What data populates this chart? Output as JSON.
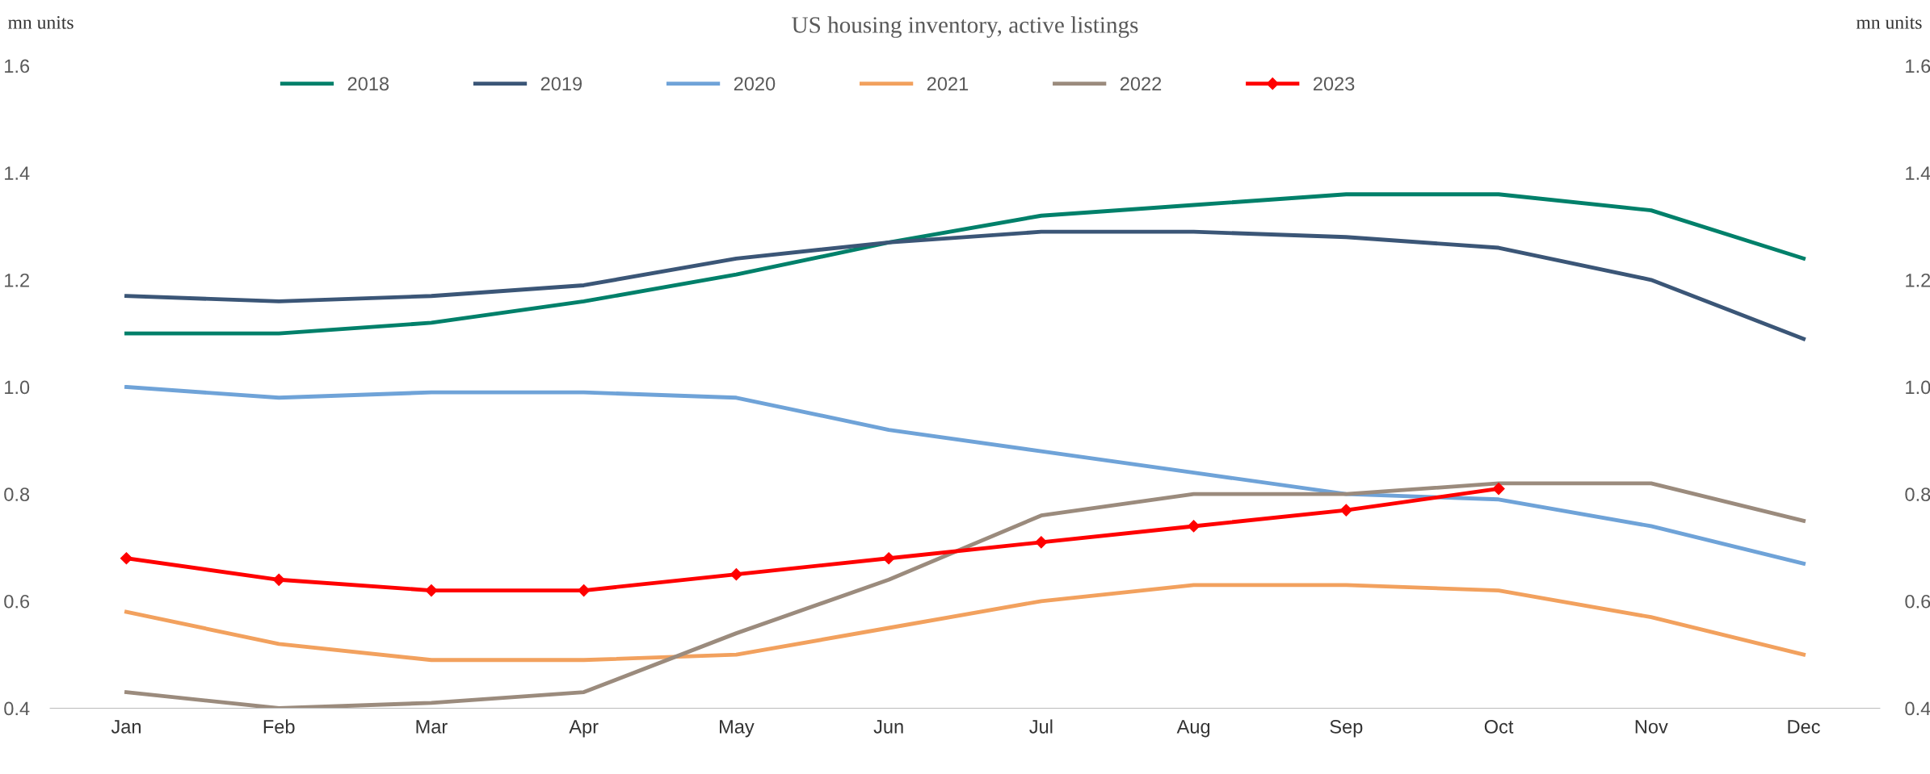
{
  "chart_data": {
    "type": "line",
    "title": "US housing inventory, active listings",
    "ylabel": "mn units",
    "y2label": "mn units",
    "categories": [
      "Jan",
      "Feb",
      "Mar",
      "Apr",
      "May",
      "Jun",
      "Jul",
      "Aug",
      "Sep",
      "Oct",
      "Nov",
      "Dec"
    ],
    "series": [
      {
        "name": "2018",
        "color": "#00806a",
        "values": [
          1.1,
          1.1,
          1.12,
          1.16,
          1.21,
          1.27,
          1.32,
          1.34,
          1.36,
          1.36,
          1.33,
          1.24
        ]
      },
      {
        "name": "2019",
        "color": "#3b5677",
        "values": [
          1.17,
          1.16,
          1.17,
          1.19,
          1.24,
          1.27,
          1.29,
          1.29,
          1.28,
          1.26,
          1.2,
          1.09
        ]
      },
      {
        "name": "2020",
        "color": "#6fa3d8",
        "values": [
          1.0,
          0.98,
          0.99,
          0.99,
          0.98,
          0.92,
          0.88,
          0.84,
          0.8,
          0.79,
          0.74,
          0.67
        ]
      },
      {
        "name": "2021",
        "color": "#f2a15e",
        "values": [
          0.58,
          0.52,
          0.49,
          0.49,
          0.5,
          0.55,
          0.6,
          0.63,
          0.63,
          0.62,
          0.57,
          0.5
        ]
      },
      {
        "name": "2022",
        "color": "#9b8b7d",
        "values": [
          0.43,
          0.4,
          0.41,
          0.43,
          0.54,
          0.64,
          0.76,
          0.8,
          0.8,
          0.82,
          0.82,
          0.75
        ]
      },
      {
        "name": "2023",
        "color": "#ff0000",
        "marker": "diamond",
        "values": [
          0.68,
          0.64,
          0.62,
          0.62,
          0.65,
          0.68,
          0.71,
          0.74,
          0.77,
          0.81,
          null,
          null
        ]
      }
    ],
    "ylim": [
      0.4,
      1.6
    ],
    "yticks": [
      {
        "value": 0.4,
        "label": "0.4"
      },
      {
        "value": 0.6,
        "label": "0.6"
      },
      {
        "value": 0.8,
        "label": "0.8"
      },
      {
        "value": 1.0,
        "label": "1.0"
      },
      {
        "value": 1.2,
        "label": "1.2"
      },
      {
        "value": 1.4,
        "label": "1.4"
      },
      {
        "value": 1.6,
        "label": "1.6"
      }
    ],
    "y2lim": [
      0.4,
      1.6
    ],
    "y2ticks": [
      {
        "value": 0.4,
        "label": "0.4"
      },
      {
        "value": 0.6,
        "label": "0.6"
      },
      {
        "value": 0.8,
        "label": "0.8"
      },
      {
        "value": 1.0,
        "label": "1.0"
      },
      {
        "value": 1.2,
        "label": "1.2"
      },
      {
        "value": 1.4,
        "label": "1.4"
      },
      {
        "value": 1.6,
        "label": "1.6"
      }
    ],
    "legend": "top",
    "grid": false,
    "line_style": "solid"
  }
}
